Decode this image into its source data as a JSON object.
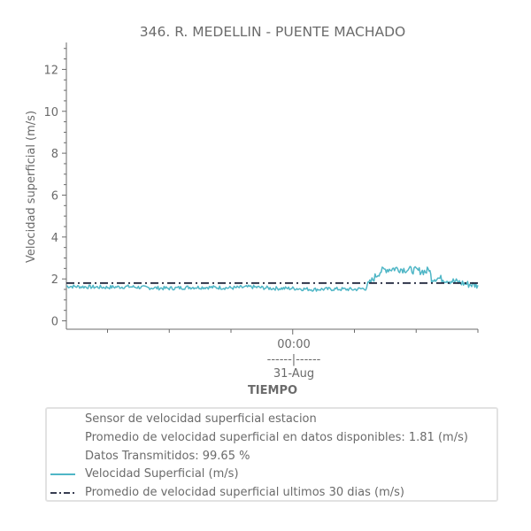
{
  "chart_data": {
    "type": "line",
    "title": "346. R. MEDELLIN - PUENTE MACHADO",
    "xlabel": "TIEMPO",
    "ylabel": "Velocidad superficial (m/s)",
    "ylim": [
      -0.4,
      13.2
    ],
    "yticks": [
      0,
      2,
      4,
      6,
      8,
      10,
      12
    ],
    "x_range_hours": [
      -44,
      36
    ],
    "x_tick_label": [
      "00:00",
      "------|------",
      "31-Aug"
    ],
    "series": [
      {
        "name": "Velocidad Superficial (m/s)",
        "color": "#4fb6c6",
        "style": "solid",
        "x_hours": [
          -44,
          -40,
          -36,
          -32,
          -28,
          -24,
          -20,
          -16,
          -12,
          -8,
          -4,
          0,
          4,
          8,
          12,
          14,
          15,
          16,
          17,
          18,
          20,
          22,
          24,
          26,
          26.5,
          27,
          28,
          30,
          32,
          34,
          36
        ],
        "values": [
          1.65,
          1.62,
          1.6,
          1.63,
          1.58,
          1.55,
          1.6,
          1.6,
          1.57,
          1.62,
          1.55,
          1.55,
          1.5,
          1.52,
          1.5,
          1.55,
          1.8,
          2.1,
          2.35,
          2.45,
          2.5,
          2.45,
          2.4,
          2.35,
          2.5,
          2.0,
          2.05,
          1.95,
          1.85,
          1.75,
          1.7
        ]
      },
      {
        "name": "Promedio de velocidad superficial ultimos 30 dias (m/s)",
        "color": "#1c2239",
        "style": "dashdot",
        "x_hours": [
          -44,
          36
        ],
        "values": [
          1.8,
          1.8
        ]
      }
    ],
    "legend": {
      "placement": "bottom",
      "entries": [
        "Sensor de velocidad superficial estacion",
        "Promedio de velocidad superficial en datos disponibles: 1.81 (m/s)",
        "Datos Transmitidos: 99.65 %",
        "Velocidad Superficial (m/s)",
        "Promedio de velocidad superficial ultimos 30 dias (m/s)"
      ]
    },
    "grid": false
  }
}
